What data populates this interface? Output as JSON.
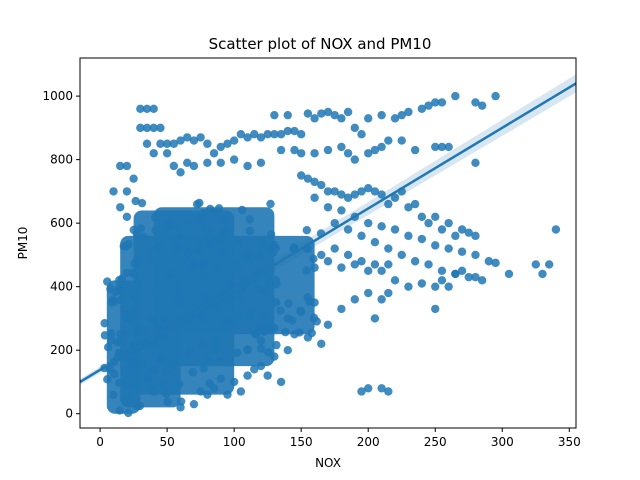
{
  "chart_data": {
    "type": "scatter",
    "title": "Scatter plot of NOX and PM10",
    "xlabel": "NOX",
    "ylabel": "PM10",
    "xlim": [
      -15,
      355
    ],
    "ylim": [
      -45,
      1120
    ],
    "xticks": [
      0,
      50,
      100,
      150,
      200,
      250,
      300,
      350
    ],
    "yticks": [
      0,
      200,
      400,
      600,
      800,
      1000
    ],
    "grid": false,
    "legend": "none",
    "color": "#1f77b4",
    "regression": {
      "type": "linear",
      "points": [
        [
          -15,
          100
        ],
        [
          355,
          1040
        ]
      ],
      "confidence_band": true
    },
    "dense_core": [
      {
        "x_range": [
          5,
          30
        ],
        "y_range": [
          0,
          420
        ]
      },
      {
        "x_range": [
          15,
          60
        ],
        "y_range": [
          20,
          560
        ]
      },
      {
        "x_range": [
          25,
          100
        ],
        "y_range": [
          60,
          640
        ]
      },
      {
        "x_range": [
          40,
          130
        ],
        "y_range": [
          150,
          650
        ]
      },
      {
        "x_range": [
          60,
          160
        ],
        "y_range": [
          250,
          560
        ]
      }
    ],
    "points": [
      [
        30,
        960
      ],
      [
        35,
        960
      ],
      [
        40,
        960
      ],
      [
        30,
        900
      ],
      [
        35,
        900
      ],
      [
        40,
        900
      ],
      [
        45,
        900
      ],
      [
        35,
        850
      ],
      [
        45,
        850
      ],
      [
        50,
        850
      ],
      [
        40,
        820
      ],
      [
        50,
        820
      ],
      [
        55,
        850
      ],
      [
        60,
        860
      ],
      [
        65,
        870
      ],
      [
        70,
        860
      ],
      [
        75,
        870
      ],
      [
        80,
        850
      ],
      [
        85,
        820
      ],
      [
        90,
        840
      ],
      [
        95,
        850
      ],
      [
        100,
        860
      ],
      [
        105,
        880
      ],
      [
        110,
        870
      ],
      [
        115,
        880
      ],
      [
        120,
        870
      ],
      [
        125,
        880
      ],
      [
        130,
        880
      ],
      [
        135,
        880
      ],
      [
        140,
        890
      ],
      [
        145,
        890
      ],
      [
        150,
        880
      ],
      [
        160,
        930
      ],
      [
        170,
        950
      ],
      [
        175,
        940
      ],
      [
        180,
        930
      ],
      [
        185,
        950
      ],
      [
        190,
        900
      ],
      [
        195,
        880
      ],
      [
        200,
        930
      ],
      [
        210,
        940
      ],
      [
        220,
        930
      ],
      [
        225,
        940
      ],
      [
        230,
        950
      ],
      [
        240,
        960
      ],
      [
        245,
        970
      ],
      [
        250,
        980
      ],
      [
        255,
        980
      ],
      [
        265,
        1000
      ],
      [
        280,
        980
      ],
      [
        285,
        970
      ],
      [
        295,
        1000
      ],
      [
        130,
        940
      ],
      [
        140,
        940
      ],
      [
        155,
        945
      ],
      [
        165,
        945
      ],
      [
        55,
        780
      ],
      [
        60,
        760
      ],
      [
        65,
        790
      ],
      [
        70,
        780
      ],
      [
        80,
        790
      ],
      [
        90,
        790
      ],
      [
        100,
        800
      ],
      [
        110,
        780
      ],
      [
        120,
        790
      ],
      [
        135,
        830
      ],
      [
        145,
        830
      ],
      [
        150,
        820
      ],
      [
        160,
        820
      ],
      [
        170,
        830
      ],
      [
        180,
        840
      ],
      [
        185,
        820
      ],
      [
        190,
        800
      ],
      [
        200,
        820
      ],
      [
        205,
        830
      ],
      [
        210,
        840
      ],
      [
        215,
        860
      ],
      [
        225,
        860
      ],
      [
        235,
        830
      ],
      [
        250,
        840
      ],
      [
        255,
        840
      ],
      [
        260,
        840
      ],
      [
        280,
        790
      ],
      [
        15,
        780
      ],
      [
        20,
        780
      ],
      [
        25,
        740
      ],
      [
        10,
        700
      ],
      [
        20,
        700
      ],
      [
        15,
        650
      ],
      [
        20,
        620
      ],
      [
        150,
        750
      ],
      [
        155,
        740
      ],
      [
        160,
        730
      ],
      [
        165,
        720
      ],
      [
        170,
        700
      ],
      [
        175,
        700
      ],
      [
        180,
        690
      ],
      [
        185,
        680
      ],
      [
        190,
        690
      ],
      [
        195,
        700
      ],
      [
        200,
        710
      ],
      [
        205,
        700
      ],
      [
        210,
        690
      ],
      [
        215,
        660
      ],
      [
        220,
        680
      ],
      [
        225,
        700
      ],
      [
        230,
        650
      ],
      [
        235,
        660
      ],
      [
        240,
        620
      ],
      [
        245,
        600
      ],
      [
        250,
        620
      ],
      [
        255,
        580
      ],
      [
        260,
        600
      ],
      [
        265,
        560
      ],
      [
        270,
        580
      ],
      [
        275,
        570
      ],
      [
        280,
        560
      ],
      [
        160,
        680
      ],
      [
        170,
        650
      ],
      [
        180,
        640
      ],
      [
        190,
        620
      ],
      [
        200,
        600
      ],
      [
        210,
        590
      ],
      [
        220,
        580
      ],
      [
        230,
        560
      ],
      [
        240,
        550
      ],
      [
        250,
        530
      ],
      [
        260,
        520
      ],
      [
        270,
        510
      ],
      [
        280,
        500
      ],
      [
        290,
        480
      ],
      [
        175,
        600
      ],
      [
        185,
        580
      ],
      [
        195,
        560
      ],
      [
        205,
        540
      ],
      [
        215,
        520
      ],
      [
        225,
        500
      ],
      [
        235,
        480
      ],
      [
        245,
        470
      ],
      [
        255,
        450
      ],
      [
        265,
        440
      ],
      [
        275,
        430
      ],
      [
        285,
        420
      ],
      [
        295,
        475
      ],
      [
        305,
        440
      ],
      [
        325,
        470
      ],
      [
        330,
        440
      ],
      [
        335,
        470
      ],
      [
        340,
        580
      ],
      [
        220,
        420
      ],
      [
        230,
        400
      ],
      [
        240,
        410
      ],
      [
        250,
        400
      ],
      [
        250,
        330
      ],
      [
        255,
        420
      ],
      [
        260,
        400
      ],
      [
        265,
        440
      ],
      [
        270,
        450
      ],
      [
        280,
        430
      ],
      [
        210,
        450
      ],
      [
        200,
        450
      ],
      [
        190,
        470
      ],
      [
        180,
        460
      ],
      [
        170,
        480
      ],
      [
        160,
        460
      ],
      [
        165,
        500
      ],
      [
        175,
        520
      ],
      [
        185,
        500
      ],
      [
        195,
        480
      ],
      [
        205,
        470
      ],
      [
        215,
        470
      ],
      [
        140,
        300
      ],
      [
        150,
        320
      ],
      [
        160,
        350
      ],
      [
        170,
        280
      ],
      [
        180,
        330
      ],
      [
        190,
        360
      ],
      [
        200,
        380
      ],
      [
        210,
        360
      ],
      [
        215,
        380
      ],
      [
        205,
        300
      ],
      [
        200,
        80
      ],
      [
        210,
        80
      ],
      [
        215,
        70
      ],
      [
        195,
        70
      ],
      [
        120,
        150
      ],
      [
        130,
        180
      ],
      [
        140,
        200
      ],
      [
        110,
        120
      ],
      [
        100,
        100
      ],
      [
        90,
        110
      ],
      [
        85,
        80
      ],
      [
        80,
        60
      ],
      [
        70,
        30
      ],
      [
        60,
        20
      ],
      [
        75,
        70
      ],
      [
        95,
        60
      ],
      [
        105,
        70
      ],
      [
        115,
        140
      ],
      [
        125,
        120
      ],
      [
        135,
        100
      ],
      [
        145,
        250
      ],
      [
        155,
        240
      ],
      [
        165,
        220
      ],
      [
        130,
        270
      ],
      [
        120,
        230
      ],
      [
        110,
        200
      ]
    ]
  }
}
